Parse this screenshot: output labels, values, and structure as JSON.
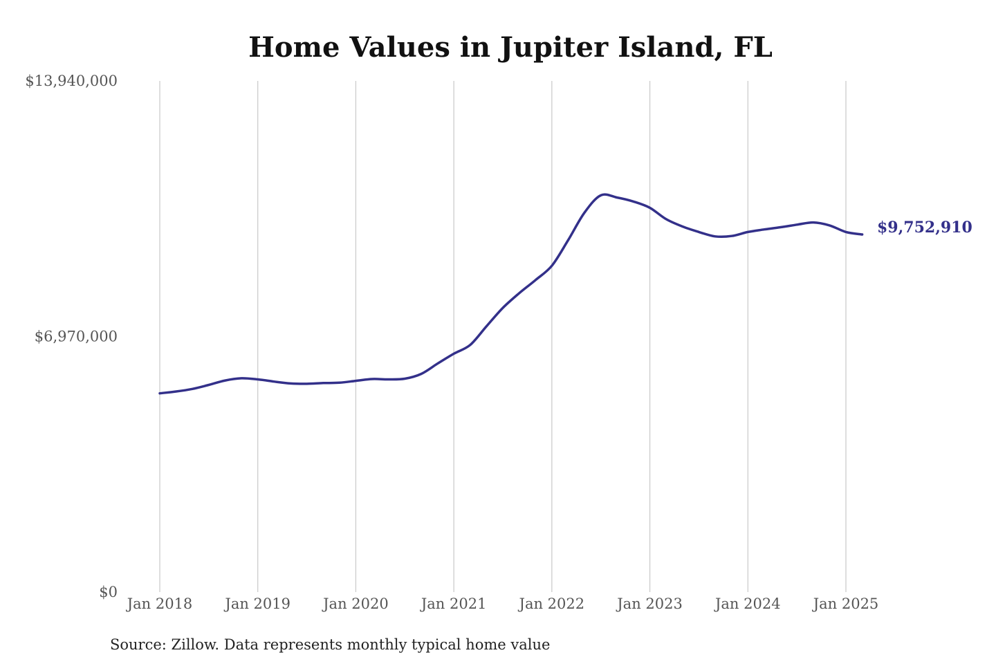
{
  "chart_data": {
    "type": "line",
    "title": "Home Values in Jupiter Island, FL",
    "xlabel": "",
    "ylabel": "",
    "source": "Source: Zillow. Data represents monthly typical home value",
    "end_label": "$9,752,910",
    "line_color": "#33308a",
    "grid": "vertical",
    "ylim": [
      0,
      13940000
    ],
    "yticks": [
      {
        "value": 0,
        "label": "$0"
      },
      {
        "value": 6970000,
        "label": "$6,970,000"
      },
      {
        "value": 13940000,
        "label": "$13,940,000"
      }
    ],
    "xlim": [
      "2018-01",
      "2025-03"
    ],
    "xticks": [
      {
        "value": "2018-01",
        "label": "Jan 2018"
      },
      {
        "value": "2019-01",
        "label": "Jan 2019"
      },
      {
        "value": "2020-01",
        "label": "Jan 2020"
      },
      {
        "value": "2021-01",
        "label": "Jan 2021"
      },
      {
        "value": "2022-01",
        "label": "Jan 2022"
      },
      {
        "value": "2023-01",
        "label": "Jan 2023"
      },
      {
        "value": "2024-01",
        "label": "Jan 2024"
      },
      {
        "value": "2025-01",
        "label": "Jan 2025"
      }
    ],
    "series": [
      {
        "x": [
          "2018-01",
          "2018-03",
          "2018-05",
          "2018-07",
          "2018-09",
          "2018-11",
          "2019-01",
          "2019-03",
          "2019-05",
          "2019-07",
          "2019-09",
          "2019-11",
          "2020-01",
          "2020-03",
          "2020-05",
          "2020-07",
          "2020-09",
          "2020-11",
          "2021-01",
          "2021-03",
          "2021-05",
          "2021-07",
          "2021-09",
          "2021-11",
          "2022-01",
          "2022-03",
          "2022-05",
          "2022-07",
          "2022-09",
          "2022-11",
          "2023-01",
          "2023-03",
          "2023-05",
          "2023-07",
          "2023-09",
          "2023-11",
          "2024-01",
          "2024-03",
          "2024-05",
          "2024-07",
          "2024-09",
          "2024-11",
          "2025-01",
          "2025-03"
        ],
        "values": [
          5420000,
          5470000,
          5540000,
          5650000,
          5770000,
          5830000,
          5800000,
          5740000,
          5690000,
          5680000,
          5700000,
          5710000,
          5760000,
          5810000,
          5800000,
          5820000,
          5950000,
          6230000,
          6500000,
          6740000,
          7250000,
          7750000,
          8150000,
          8510000,
          8900000,
          9600000,
          10350000,
          10820000,
          10760000,
          10650000,
          10480000,
          10170000,
          9970000,
          9820000,
          9700000,
          9710000,
          9820000,
          9890000,
          9950000,
          10020000,
          10080000,
          10000000,
          9820000,
          9752910
        ]
      }
    ]
  }
}
